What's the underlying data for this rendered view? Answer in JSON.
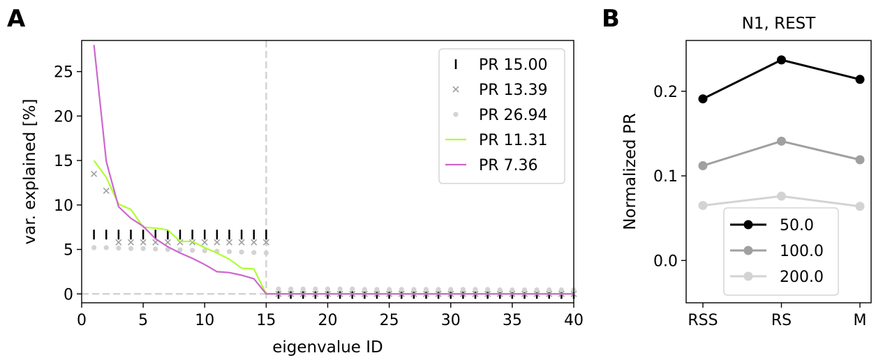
{
  "panels": {
    "a_letter": "A",
    "b_letter": "B"
  },
  "chart_data": [
    {
      "type": "line",
      "panel": "A",
      "title": "",
      "xlabel": "eigenvalue ID",
      "ylabel": "var. explained [%]",
      "xlim": [
        0,
        40
      ],
      "ylim": [
        -1,
        28.5
      ],
      "xticks": [
        0,
        5,
        10,
        15,
        20,
        25,
        30,
        35,
        40
      ],
      "yticks": [
        0,
        5,
        10,
        15,
        20,
        25
      ],
      "grid": false,
      "legend_position": "top-right",
      "reference_lines": [
        {
          "orientation": "vertical",
          "value": 15,
          "style": "dashed",
          "color": "#d3d3d3"
        },
        {
          "orientation": "horizontal",
          "value": 0,
          "style": "dashed",
          "color": "#d3d3d3"
        }
      ],
      "series": [
        {
          "name": "PR 15.00",
          "marker": "vline",
          "color": "#000000",
          "x": [
            1,
            2,
            3,
            4,
            5,
            6,
            7,
            8,
            9,
            10,
            11,
            12,
            13,
            14,
            15,
            16,
            17,
            18,
            19,
            20,
            21,
            22,
            23,
            24,
            25,
            26,
            27,
            28,
            29,
            30,
            31,
            32,
            33,
            34,
            35,
            36,
            37,
            38,
            39,
            40
          ],
          "y": [
            6.67,
            6.67,
            6.67,
            6.67,
            6.67,
            6.67,
            6.67,
            6.67,
            6.67,
            6.67,
            6.67,
            6.67,
            6.67,
            6.67,
            6.67,
            0,
            0,
            0,
            0,
            0,
            0,
            0,
            0,
            0,
            0,
            0,
            0,
            0,
            0,
            0,
            0,
            0,
            0,
            0,
            0,
            0,
            0,
            0,
            0,
            0
          ]
        },
        {
          "name": "PR 13.39",
          "marker": "x",
          "color": "#a0a0a0",
          "x": [
            1,
            2,
            3,
            4,
            5,
            6,
            7,
            8,
            9,
            10,
            11,
            12,
            13,
            14,
            15,
            16,
            17,
            18,
            19,
            20,
            21,
            22,
            23,
            24,
            25,
            26,
            27,
            28,
            29,
            30,
            31,
            32,
            33,
            34,
            35,
            36,
            37,
            38,
            39,
            40
          ],
          "y": [
            13.5,
            11.6,
            5.8,
            5.8,
            5.8,
            5.8,
            5.8,
            5.8,
            5.8,
            5.8,
            5.8,
            5.8,
            5.8,
            5.8,
            5.8,
            0,
            0,
            0,
            0,
            0,
            0,
            0,
            0,
            0,
            0,
            0,
            0,
            0,
            0,
            0,
            0,
            0,
            0,
            0,
            0,
            0,
            0,
            0,
            0,
            0
          ]
        },
        {
          "name": "PR 26.94",
          "marker": "dot",
          "color": "#d3d3d3",
          "x": [
            1,
            2,
            3,
            4,
            5,
            6,
            7,
            8,
            9,
            10,
            11,
            12,
            13,
            14,
            15,
            16,
            17,
            18,
            19,
            20,
            21,
            22,
            23,
            24,
            25,
            26,
            27,
            28,
            29,
            30,
            31,
            32,
            33,
            34,
            35,
            36,
            37,
            38,
            39,
            40
          ],
          "y": [
            5.2,
            5.2,
            5.15,
            5.1,
            5.1,
            5.05,
            5.0,
            4.95,
            4.9,
            4.85,
            4.8,
            4.75,
            4.7,
            4.65,
            4.6,
            0.55,
            0.55,
            0.55,
            0.55,
            0.55,
            0.55,
            0.55,
            0.5,
            0.5,
            0.5,
            0.5,
            0.5,
            0.5,
            0.5,
            0.5,
            0.5,
            0.5,
            0.5,
            0.45,
            0.45,
            0.45,
            0.45,
            0.45,
            0.45,
            0.45
          ]
        },
        {
          "name": "PR 11.31",
          "marker": "line",
          "color": "#adff2f",
          "x": [
            1,
            2,
            3,
            4,
            5,
            6,
            7,
            8,
            9,
            10,
            11,
            12,
            13,
            14,
            15,
            16,
            17,
            18,
            19,
            20,
            21,
            22,
            23,
            24,
            25,
            26,
            27,
            28,
            29,
            30,
            31,
            32,
            33,
            34,
            35,
            36,
            37,
            38,
            39,
            40
          ],
          "y": [
            15.0,
            13.1,
            10.1,
            9.5,
            7.5,
            7.4,
            7.2,
            5.9,
            5.9,
            5.2,
            4.6,
            3.9,
            2.9,
            2.8,
            0,
            0,
            0,
            0,
            0,
            0,
            0,
            0,
            0,
            0,
            0,
            0,
            0,
            0,
            0,
            0,
            0,
            0,
            0,
            0,
            0,
            0,
            0,
            0,
            0,
            0
          ]
        },
        {
          "name": "PR 7.36",
          "marker": "line",
          "color": "#cc66cc",
          "x": [
            1,
            2,
            3,
            4,
            5,
            6,
            7,
            8,
            9,
            10,
            11,
            12,
            13,
            14,
            15,
            16,
            17,
            18,
            19,
            20,
            21,
            22,
            23,
            24,
            25,
            26,
            27,
            28,
            29,
            30,
            31,
            32,
            33,
            34,
            35,
            36,
            37,
            38,
            39,
            40
          ],
          "y": [
            28.0,
            14.9,
            9.8,
            8.5,
            7.6,
            6.2,
            5.3,
            4.6,
            4.0,
            3.3,
            2.5,
            2.4,
            2.1,
            1.7,
            0,
            0,
            0,
            0,
            0,
            0,
            0,
            0,
            0,
            0,
            0,
            0,
            0,
            0,
            0,
            0,
            0,
            0,
            0,
            0,
            0,
            0,
            0,
            0,
            0,
            0
          ]
        }
      ]
    },
    {
      "type": "line",
      "panel": "B",
      "title": "N1, REST",
      "xlabel": "",
      "ylabel": "Normalized PR",
      "categories": [
        "RSS",
        "RS",
        "M"
      ],
      "ylim": [
        -0.05,
        0.26
      ],
      "yticks": [
        0.0,
        0.1,
        0.2
      ],
      "ytick_labels": [
        "0.0",
        "0.1",
        "0.2"
      ],
      "grid": false,
      "legend_position": "lower-center",
      "series": [
        {
          "name": "50.0",
          "color": "#000000",
          "values": [
            0.191,
            0.237,
            0.214
          ]
        },
        {
          "name": "100.0",
          "color": "#a0a0a0",
          "values": [
            0.112,
            0.141,
            0.119
          ]
        },
        {
          "name": "200.0",
          "color": "#d3d3d3",
          "values": [
            0.065,
            0.076,
            0.064
          ]
        }
      ]
    }
  ]
}
